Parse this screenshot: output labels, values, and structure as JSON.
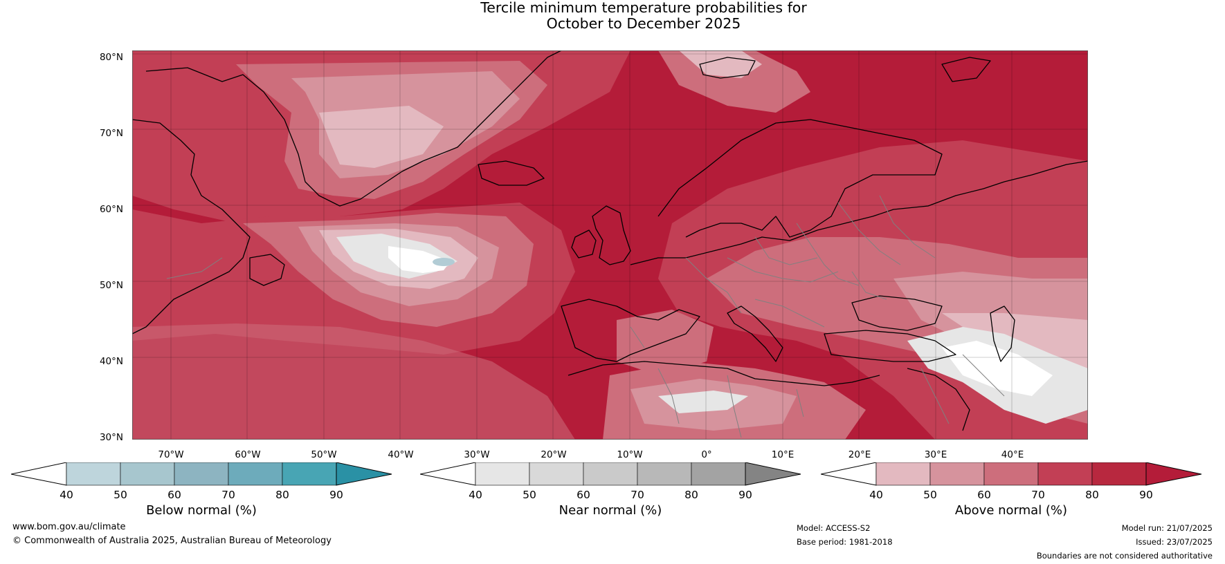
{
  "title": {
    "line1": "Tercile minimum temperature probabilities for",
    "line2": "October to December 2025"
  },
  "map": {
    "region": "North Atlantic and Europe",
    "lat_ticks": [
      "80°N",
      "70°N",
      "60°N",
      "50°N",
      "40°N",
      "30°N"
    ],
    "lon_ticks": [
      "70°W",
      "60°W",
      "50°W",
      "40°W",
      "30°W",
      "20°W",
      "10°W",
      "0°",
      "10°E",
      "20°E",
      "30°E",
      "40°E"
    ],
    "colors": {
      "above_90": "#b41c39",
      "above_80": "#c23f55",
      "above_70": "#cd6e7c",
      "above_60": "#d6939d",
      "above_50": "#e3b9c0",
      "near_50": "#e6e6e6",
      "below_40": "#b2ccd5",
      "coast": "#000000",
      "borders": "#808080"
    }
  },
  "colorbars": [
    {
      "id": "below",
      "label": "Below normal (%)",
      "ticks": [
        "40",
        "50",
        "60",
        "70",
        "80",
        "90"
      ],
      "colors": [
        "#bed5dc",
        "#a7c6ce",
        "#8db4c1",
        "#6dabbb",
        "#48a5b4",
        "#2a91a5"
      ]
    },
    {
      "id": "near",
      "label": "Near normal (%)",
      "ticks": [
        "40",
        "50",
        "60",
        "70",
        "80",
        "90"
      ],
      "colors": [
        "#e6e6e6",
        "#d9d9d9",
        "#cacaca",
        "#b8b8b8",
        "#a3a3a3",
        "#848484"
      ]
    },
    {
      "id": "above",
      "label": "Above normal (%)",
      "ticks": [
        "40",
        "50",
        "60",
        "70",
        "80",
        "90"
      ],
      "colors": [
        "#e3b9c0",
        "#d6939d",
        "#cd6e7c",
        "#c23f55",
        "#b8283f",
        "#b41c39"
      ]
    }
  ],
  "footer": {
    "website": "www.bom.gov.au/climate",
    "copyright": "© Commonwealth of Australia 2025, Australian Bureau of Meteorology",
    "model": "Model: ACCESS-S2",
    "base_period": "Base period: 1981-2018",
    "model_run": "Model run: 21/07/2025",
    "issued": "Issued: 23/07/2025",
    "disclaimer": "Boundaries are not considered authoritative"
  }
}
